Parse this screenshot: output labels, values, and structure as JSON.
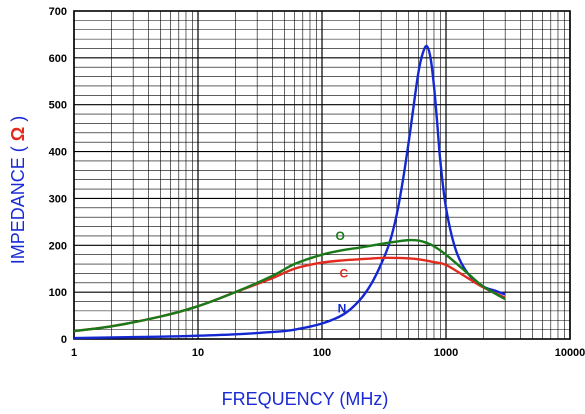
{
  "chart_data": {
    "type": "line",
    "xlabel": "FREQUENCY (MHz)",
    "ylabel_prefix": "IMPEDANCE ( ",
    "ylabel_unit": "Ω",
    "ylabel_suffix": " )",
    "xscale": "log",
    "xlim": [
      1,
      10000
    ],
    "ylim": [
      0,
      700
    ],
    "grid": true,
    "xticks": [
      1,
      10,
      100,
      1000,
      10000
    ],
    "xtick_labels": [
      "1",
      "10",
      "100",
      "1000",
      "10000"
    ],
    "yticks": [
      0,
      100,
      200,
      300,
      400,
      500,
      600,
      700
    ],
    "ytick_labels": [
      "0",
      "100",
      "200",
      "300",
      "400",
      "500",
      "600",
      "700"
    ],
    "series": [
      {
        "name": "N",
        "color": "#1428d2",
        "label_at": [
          145,
          65
        ],
        "x": [
          1,
          5,
          10,
          20,
          40,
          60,
          100,
          150,
          200,
          250,
          300,
          350,
          400,
          450,
          500,
          550,
          600,
          650,
          700,
          750,
          800,
          850,
          900,
          1000,
          1200,
          1500,
          2000,
          2500,
          3000
        ],
        "y": [
          2,
          5,
          7,
          10,
          15,
          20,
          33,
          53,
          82,
          118,
          160,
          205,
          265,
          340,
          420,
          500,
          570,
          610,
          625,
          600,
          540,
          460,
          380,
          280,
          190,
          140,
          112,
          103,
          95
        ]
      },
      {
        "name": "C",
        "color": "#e32a1e",
        "label_at": [
          150,
          140
        ],
        "x": [
          1,
          2,
          5,
          10,
          20,
          40,
          60,
          100,
          150,
          200,
          300,
          400,
          500,
          600,
          800,
          1000,
          1500,
          2000,
          3000
        ],
        "y": [
          17,
          27,
          48,
          70,
          100,
          130,
          150,
          163,
          168,
          170,
          173,
          173,
          172,
          170,
          164,
          158,
          130,
          110,
          88
        ]
      },
      {
        "name": "O",
        "color": "#1a7a1a",
        "label_at": [
          140,
          220
        ],
        "x": [
          1,
          2,
          5,
          10,
          20,
          40,
          60,
          100,
          150,
          200,
          300,
          400,
          500,
          600,
          700,
          800,
          1000,
          1500,
          2000,
          3000
        ],
        "y": [
          17,
          27,
          48,
          70,
          100,
          135,
          160,
          180,
          190,
          195,
          203,
          208,
          211,
          210,
          205,
          198,
          180,
          140,
          112,
          85
        ]
      }
    ]
  }
}
